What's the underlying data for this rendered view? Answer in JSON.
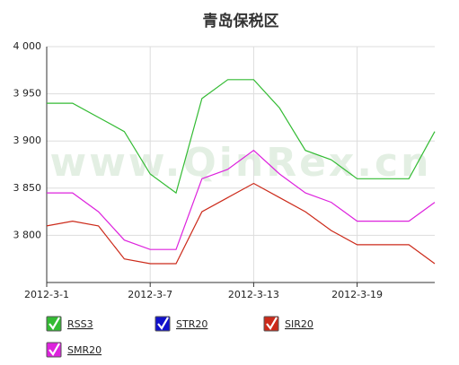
{
  "chart_data": {
    "type": "line",
    "title": "青岛保税区",
    "watermark": "www.QinRex.cn",
    "categories": [
      "2012-3-1",
      null,
      null,
      null,
      "2012-3-7",
      null,
      null,
      null,
      "2012-3-13",
      null,
      null,
      null,
      "2012-3-19",
      null,
      null,
      null
    ],
    "ylim": [
      3750,
      4000
    ],
    "yticks": [
      {
        "value": 3800,
        "label": "3 800"
      },
      {
        "value": 3850,
        "label": "3 850"
      },
      {
        "value": 3900,
        "label": "3 900"
      },
      {
        "value": 3950,
        "label": "3 950"
      },
      {
        "value": 4000,
        "label": "4 000"
      }
    ],
    "grid": true,
    "series": [
      {
        "name": "RSS3",
        "color": "#33bb33",
        "values": [
          3940,
          3940,
          3925,
          3910,
          3865,
          3845,
          3945,
          3965,
          3965,
          3935,
          3890,
          3880,
          3860,
          3860,
          3860,
          3910
        ]
      },
      {
        "name": "STR20",
        "color": "#1111cc",
        "values": [
          null,
          null,
          null,
          null,
          null,
          null,
          null,
          null,
          null,
          null,
          null,
          null,
          null,
          null,
          null,
          null
        ]
      },
      {
        "name": "SIR20",
        "color": "#cc2a1a",
        "values": [
          3810,
          3815,
          3810,
          3775,
          3770,
          3770,
          3825,
          3840,
          3855,
          3840,
          3825,
          3805,
          3790,
          3790,
          3790,
          3770
        ]
      },
      {
        "name": "SMR20",
        "color": "#dd22dd",
        "values": [
          3845,
          3845,
          3825,
          3795,
          3785,
          3785,
          3860,
          3870,
          3890,
          3865,
          3845,
          3835,
          3815,
          3815,
          3815,
          3835
        ]
      }
    ]
  }
}
